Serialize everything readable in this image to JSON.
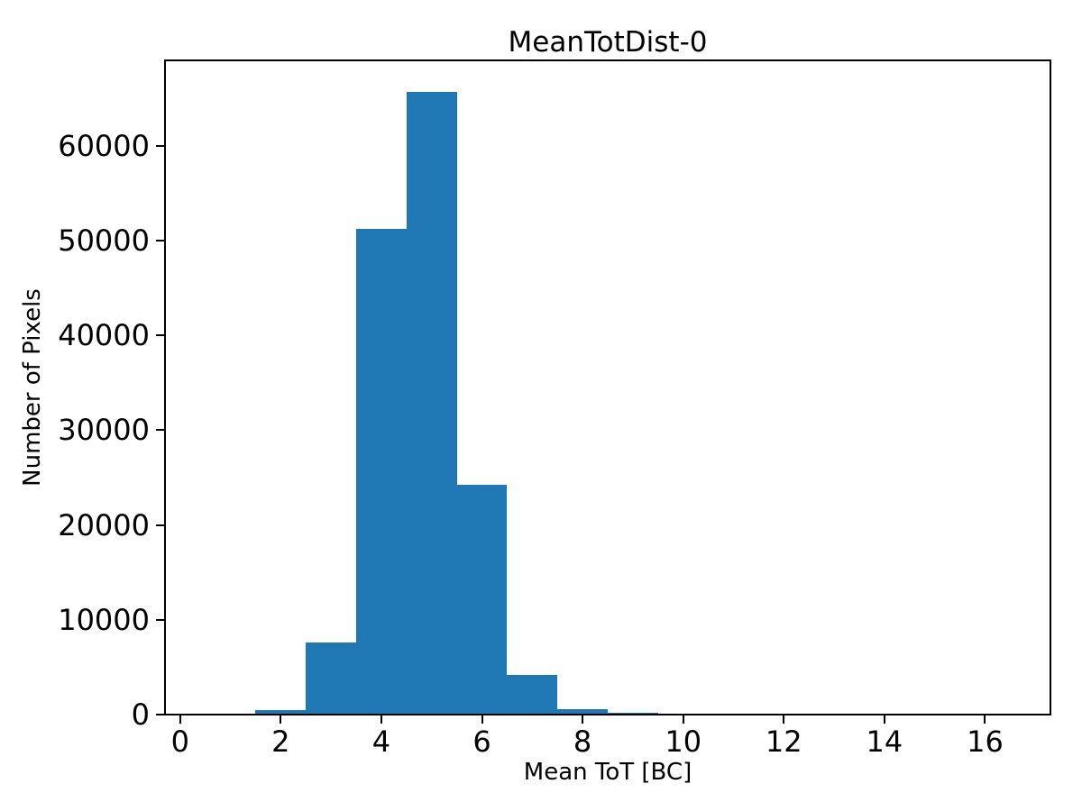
{
  "chart_data": {
    "type": "bar",
    "subtype": "histogram",
    "title": "MeanTotDist-0",
    "xlabel": "Mean ToT [BC]",
    "ylabel": "Number of Pixels",
    "bar_color": "#1f77b4",
    "text_color": "#000000",
    "background_color": "#ffffff",
    "grid": false,
    "legend_position": "none",
    "xlim": [
      -0.3,
      17.3
    ],
    "ylim": [
      0,
      69000
    ],
    "xticks": [
      0,
      2,
      4,
      6,
      8,
      10,
      12,
      14,
      16
    ],
    "yticks": [
      0,
      10000,
      20000,
      30000,
      40000,
      50000,
      60000
    ],
    "bin_edges": [
      0.5,
      1.5,
      2.5,
      3.5,
      4.5,
      5.5,
      6.5,
      7.5,
      8.5,
      9.5,
      10.5,
      11.5,
      12.5,
      13.5,
      14.5,
      15.5,
      16.5
    ],
    "counts": [
      0,
      450,
      7600,
      51200,
      65700,
      24200,
      4200,
      600,
      150,
      0,
      0,
      0,
      0,
      0,
      0,
      0
    ]
  }
}
